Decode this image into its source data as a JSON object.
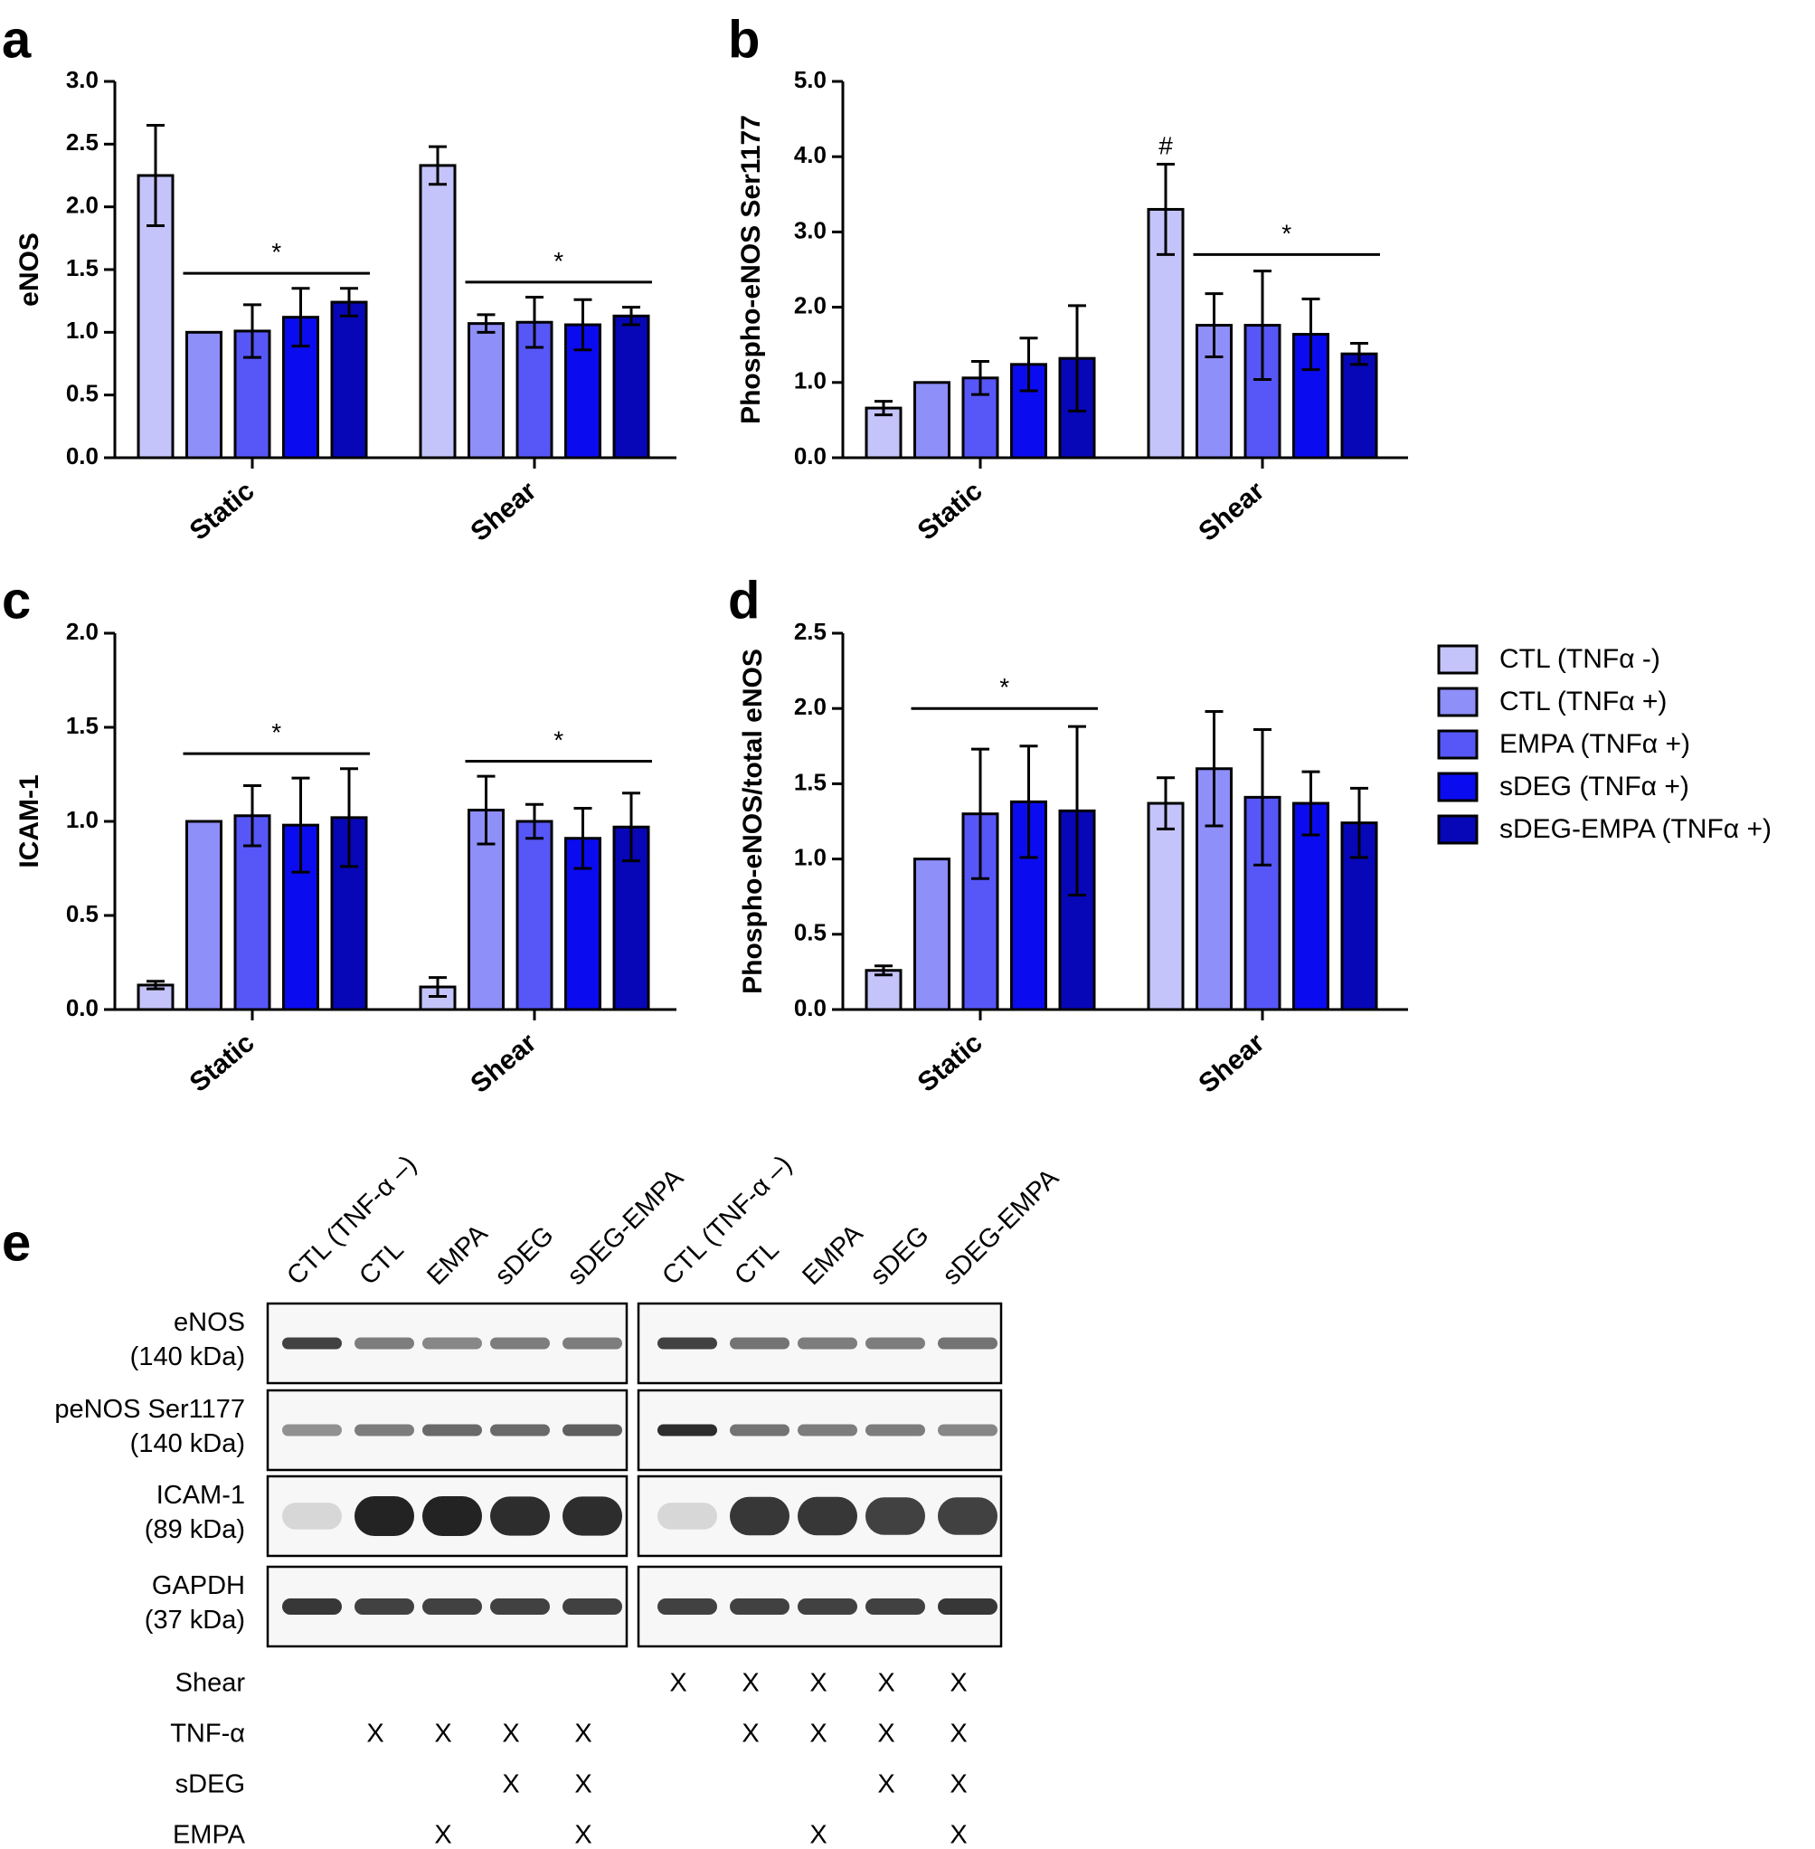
{
  "panels": [
    {
      "letter": "a",
      "ylabel": "eNOS"
    },
    {
      "letter": "b",
      "ylabel": "Phospho-eNOS Ser1177"
    },
    {
      "letter": "c",
      "ylabel": "ICAM-1"
    },
    {
      "letter": "d",
      "ylabel": "Phospho-eNOS/total eNOS"
    },
    {
      "letter": "e"
    }
  ],
  "colors": {
    "series": [
      "#c4c4fa",
      "#8f8ffa",
      "#5757f7",
      "#0b0bf0",
      "#0707b8"
    ],
    "axis": "#000000"
  },
  "legend": {
    "position": "right-of-panel-d",
    "entries": [
      "CTL (TNFα -)",
      "CTL (TNFα +)",
      "EMPA (TNFα +)",
      "sDEG (TNFα +)",
      "sDEG-EMPA (TNFα +)"
    ]
  },
  "chart_data": [
    {
      "type": "bar",
      "id": "a",
      "categories": [
        "Static",
        "Shear"
      ],
      "ylabel": "eNOS",
      "ylim": [
        0,
        3.0
      ],
      "yticks": [
        "0.0",
        "0.5",
        "1.0",
        "1.5",
        "2.0",
        "2.5",
        "3.0"
      ],
      "grid": false,
      "series": [
        {
          "name": "CTL (TNFα -)",
          "values": [
            2.25,
            2.33
          ],
          "errors": [
            0.4,
            0.15
          ]
        },
        {
          "name": "CTL (TNFα +)",
          "values": [
            1.0,
            1.07
          ],
          "errors": [
            0.0,
            0.07
          ]
        },
        {
          "name": "EMPA (TNFα +)",
          "values": [
            1.01,
            1.08
          ],
          "errors": [
            0.21,
            0.2
          ]
        },
        {
          "name": "sDEG (TNFα +)",
          "values": [
            1.12,
            1.06
          ],
          "errors": [
            0.23,
            0.2
          ]
        },
        {
          "name": "sDEG-EMPA (TNFα +)",
          "values": [
            1.24,
            1.13
          ],
          "errors": [
            0.11,
            0.07
          ]
        }
      ],
      "annotations": [
        {
          "text": "*",
          "category": 0,
          "from_series": 1,
          "to_series": 4,
          "y": 1.47
        },
        {
          "text": "*",
          "category": 1,
          "from_series": 1,
          "to_series": 4,
          "y": 1.4
        }
      ]
    },
    {
      "type": "bar",
      "id": "b",
      "categories": [
        "Static",
        "Shear"
      ],
      "ylabel": "Phospho-eNOS Ser1177",
      "ylim": [
        0,
        5.0
      ],
      "yticks": [
        "0.0",
        "1.0",
        "2.0",
        "3.0",
        "4.0",
        "5.0"
      ],
      "grid": false,
      "series": [
        {
          "name": "CTL (TNFα -)",
          "values": [
            0.66,
            3.3
          ],
          "errors": [
            0.09,
            0.6
          ]
        },
        {
          "name": "CTL (TNFα +)",
          "values": [
            1.0,
            1.76
          ],
          "errors": [
            0.0,
            0.42
          ]
        },
        {
          "name": "EMPA (TNFα +)",
          "values": [
            1.06,
            1.76
          ],
          "errors": [
            0.22,
            0.72
          ]
        },
        {
          "name": "sDEG (TNFα +)",
          "values": [
            1.24,
            1.64
          ],
          "errors": [
            0.35,
            0.47
          ]
        },
        {
          "name": "sDEG-EMPA (TNFα +)",
          "values": [
            1.32,
            1.38
          ],
          "errors": [
            0.7,
            0.14
          ]
        }
      ],
      "annotations": [
        {
          "text": "#",
          "category": 1,
          "series": 0,
          "y": 4.03
        },
        {
          "text": "*",
          "category": 1,
          "from_series": 1,
          "to_series": 4,
          "y": 2.7
        }
      ]
    },
    {
      "type": "bar",
      "id": "c",
      "categories": [
        "Static",
        "Shear"
      ],
      "ylabel": "ICAM-1",
      "ylim": [
        0,
        2.0
      ],
      "yticks": [
        "0.0",
        "0.5",
        "1.0",
        "1.5",
        "2.0"
      ],
      "grid": false,
      "series": [
        {
          "name": "CTL (TNFα -)",
          "values": [
            0.13,
            0.12
          ],
          "errors": [
            0.02,
            0.05
          ]
        },
        {
          "name": "CTL (TNFα +)",
          "values": [
            1.0,
            1.06
          ],
          "errors": [
            0.0,
            0.18
          ]
        },
        {
          "name": "EMPA (TNFα +)",
          "values": [
            1.03,
            1.0
          ],
          "errors": [
            0.16,
            0.09
          ]
        },
        {
          "name": "sDEG (TNFα +)",
          "values": [
            0.98,
            0.91
          ],
          "errors": [
            0.25,
            0.16
          ]
        },
        {
          "name": "sDEG-EMPA (TNFα +)",
          "values": [
            1.02,
            0.97
          ],
          "errors": [
            0.26,
            0.18
          ]
        }
      ],
      "annotations": [
        {
          "text": "*",
          "category": 0,
          "from_series": 1,
          "to_series": 4,
          "y": 1.36
        },
        {
          "text": "*",
          "category": 1,
          "from_series": 1,
          "to_series": 4,
          "y": 1.32
        }
      ]
    },
    {
      "type": "bar",
      "id": "d",
      "categories": [
        "Static",
        "Shear"
      ],
      "ylabel": "Phospho-eNOS/total eNOS",
      "ylim": [
        0,
        2.5
      ],
      "yticks": [
        "0.0",
        "0.5",
        "1.0",
        "1.5",
        "2.0",
        "2.5"
      ],
      "grid": false,
      "series": [
        {
          "name": "CTL (TNFα -)",
          "values": [
            0.26,
            1.37
          ],
          "errors": [
            0.03,
            0.17
          ]
        },
        {
          "name": "CTL (TNFα +)",
          "values": [
            1.0,
            1.6
          ],
          "errors": [
            0.0,
            0.38
          ]
        },
        {
          "name": "EMPA (TNFα +)",
          "values": [
            1.3,
            1.41
          ],
          "errors": [
            0.43,
            0.45
          ]
        },
        {
          "name": "sDEG (TNFα +)",
          "values": [
            1.38,
            1.37
          ],
          "errors": [
            0.37,
            0.21
          ]
        },
        {
          "name": "sDEG-EMPA (TNFα +)",
          "values": [
            1.32,
            1.24
          ],
          "errors": [
            0.56,
            0.23
          ]
        }
      ],
      "annotations": [
        {
          "text": "*",
          "category": 0,
          "from_series": 1,
          "to_series": 4,
          "y": 2.0
        }
      ]
    }
  ],
  "blot": {
    "lane_labels": [
      "CTL (TNF-α –)",
      "CTL",
      "EMPA",
      "sDEG",
      "sDEG-EMPA",
      "CTL (TNF-α –)",
      "CTL",
      "EMPA",
      "sDEG",
      "sDEG-EMPA"
    ],
    "rows": [
      {
        "name": "eNOS",
        "mw": "(140 kDa)",
        "intensity": [
          0.85,
          0.55,
          0.5,
          0.55,
          0.55,
          0.85,
          0.6,
          0.55,
          0.55,
          0.6
        ]
      },
      {
        "name": "peNOS Ser1177",
        "mw": "(140 kDa)",
        "intensity": [
          0.45,
          0.55,
          0.65,
          0.65,
          0.7,
          0.95,
          0.6,
          0.55,
          0.55,
          0.5
        ]
      },
      {
        "name": "ICAM-1",
        "mw": "(89 kDa)",
        "intensity": [
          0.1,
          1.0,
          1.0,
          0.95,
          0.95,
          0.1,
          0.9,
          0.9,
          0.85,
          0.85
        ]
      },
      {
        "name": "GAPDH",
        "mw": "(37 kDa)",
        "intensity": [
          0.9,
          0.85,
          0.85,
          0.85,
          0.85,
          0.85,
          0.85,
          0.85,
          0.85,
          0.9
        ]
      }
    ],
    "condition_matrix": [
      {
        "label": "Shear",
        "marks": [
          "",
          "",
          "",
          "",
          "",
          "X",
          "X",
          "X",
          "X",
          "X"
        ]
      },
      {
        "label": "TNF-α",
        "marks": [
          "",
          "X",
          "X",
          "X",
          "X",
          "",
          "X",
          "X",
          "X",
          "X"
        ]
      },
      {
        "label": "sDEG",
        "marks": [
          "",
          "",
          "",
          "X",
          "X",
          "",
          "",
          "",
          "X",
          "X"
        ]
      },
      {
        "label": "EMPA",
        "marks": [
          "",
          "",
          "X",
          "",
          "X",
          "",
          "",
          "X",
          "",
          "X"
        ]
      }
    ]
  }
}
